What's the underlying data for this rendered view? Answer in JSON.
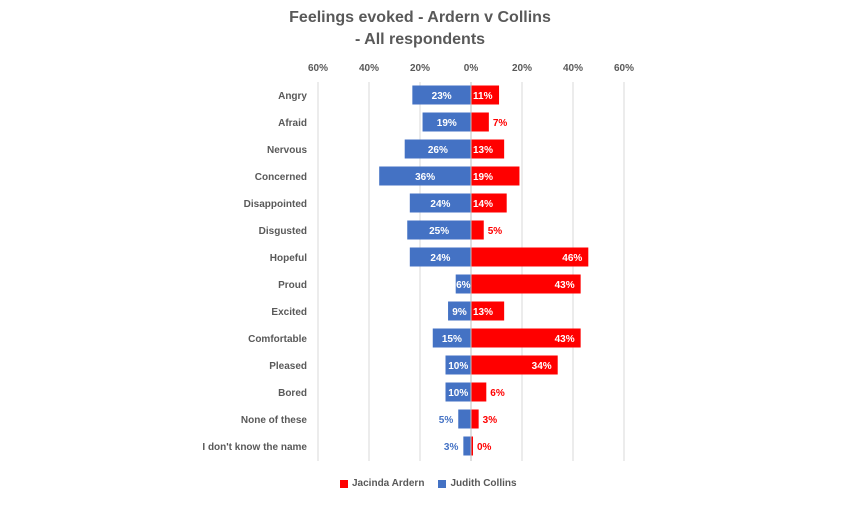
{
  "title_lines": [
    "Feelings evoked - Ardern v Collins",
    "- All respondents"
  ],
  "colors": {
    "ardern": "#FF0000",
    "collins": "#4472C4",
    "grid": "#D9D9D9",
    "text": "#595959"
  },
  "chart_data": {
    "type": "bar",
    "orientation": "horizontal-diverging",
    "title": "Feelings evoked - Ardern v Collins - All respondents",
    "x_ticks": [
      "60%",
      "40%",
      "20%",
      "0%",
      "20%",
      "40%",
      "60%"
    ],
    "xlim": [
      -60,
      60
    ],
    "grid": true,
    "legend_position": "bottom",
    "categories": [
      "Angry",
      "Afraid",
      "Nervous",
      "Concerned",
      "Disappointed",
      "Disgusted",
      "Hopeful",
      "Proud",
      "Excited",
      "Comfortable",
      "Pleased",
      "Bored",
      "None of these",
      "I don't know the name"
    ],
    "series": [
      {
        "name": "Jacinda Ardern",
        "side": "right",
        "values": [
          11,
          7,
          13,
          19,
          14,
          5,
          46,
          43,
          13,
          43,
          34,
          6,
          3,
          0
        ]
      },
      {
        "name": "Judith Collins",
        "side": "left",
        "values": [
          23,
          19,
          26,
          36,
          24,
          25,
          24,
          6,
          9,
          15,
          10,
          10,
          5,
          3
        ]
      }
    ]
  }
}
